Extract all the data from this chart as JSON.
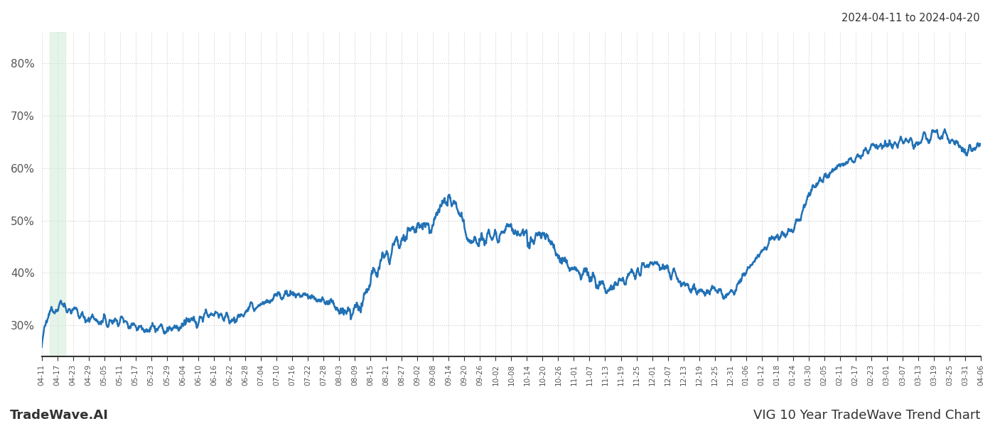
{
  "title_right": "2024-04-11 to 2024-04-20",
  "title_bottom_left": "TradeWave.AI",
  "title_bottom_right": "VIG 10 Year TradeWave Trend Chart",
  "line_color": "#2171b5",
  "line_width": 1.8,
  "highlight_color": "#d4edda",
  "highlight_alpha": 0.6,
  "background_color": "#ffffff",
  "grid_color": "#cccccc",
  "grid_style": ":",
  "ylim": [
    24,
    86
  ],
  "yticks": [
    30,
    40,
    50,
    60,
    70,
    80
  ],
  "figsize": [
    14,
    6
  ],
  "dpi": 100,
  "x_labels": [
    "04-11",
    "04-17",
    "04-23",
    "04-29",
    "05-05",
    "05-11",
    "05-17",
    "05-23",
    "05-29",
    "06-04",
    "06-10",
    "06-16",
    "06-22",
    "06-28",
    "07-04",
    "07-10",
    "07-16",
    "07-22",
    "07-28",
    "08-03",
    "08-09",
    "08-15",
    "08-21",
    "08-27",
    "09-02",
    "09-08",
    "09-14",
    "09-20",
    "09-26",
    "10-02",
    "10-08",
    "10-14",
    "10-20",
    "10-26",
    "11-01",
    "11-07",
    "11-13",
    "11-19",
    "11-25",
    "12-01",
    "12-07",
    "12-13",
    "12-19",
    "12-25",
    "12-31",
    "01-06",
    "01-12",
    "01-18",
    "01-24",
    "01-30",
    "02-05",
    "02-11",
    "02-17",
    "02-23",
    "03-01",
    "03-07",
    "03-13",
    "03-19",
    "03-25",
    "03-31",
    "04-06"
  ]
}
